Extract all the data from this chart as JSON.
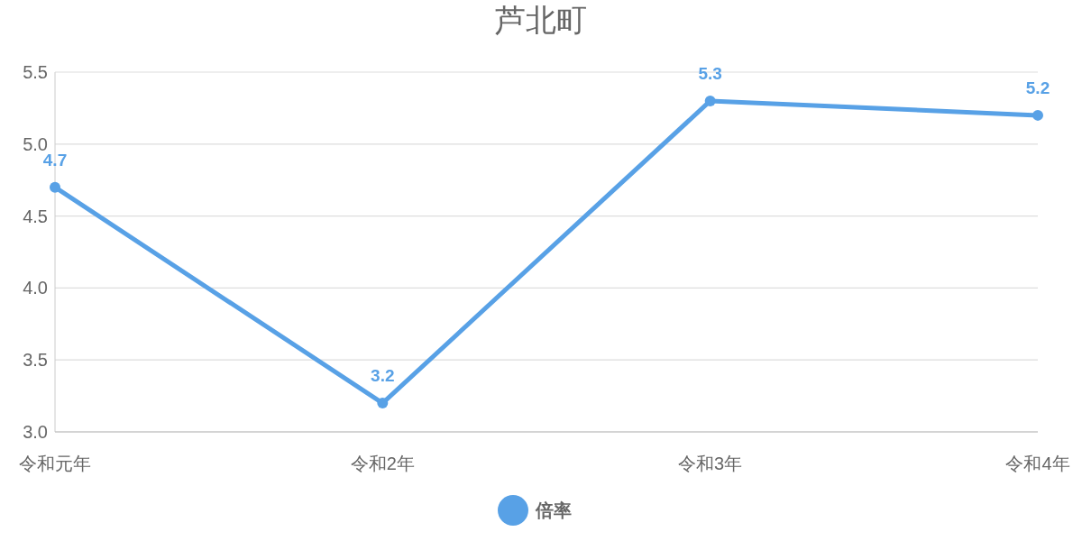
{
  "chart_data": {
    "type": "line",
    "title": "芦北町",
    "categories": [
      "令和元年",
      "令和2年",
      "令和3年",
      "令和4年"
    ],
    "series": [
      {
        "name": "倍率",
        "color": "#58a1e6",
        "values": [
          4.7,
          3.2,
          5.3,
          5.2
        ]
      }
    ],
    "ylim": [
      3.0,
      5.5
    ],
    "yticks": [
      {
        "value": 3,
        "label": "3.0"
      },
      {
        "value": 3.5,
        "label": "3.5"
      },
      {
        "value": 4,
        "label": "4.0"
      },
      {
        "value": 4.5,
        "label": "4.5"
      },
      {
        "value": 5,
        "label": "5.0"
      },
      {
        "value": 5.5,
        "label": "5.5"
      }
    ],
    "grid": "y",
    "legend": "bottom",
    "marker": "circle",
    "line_style": "solid",
    "data_labels": true
  }
}
